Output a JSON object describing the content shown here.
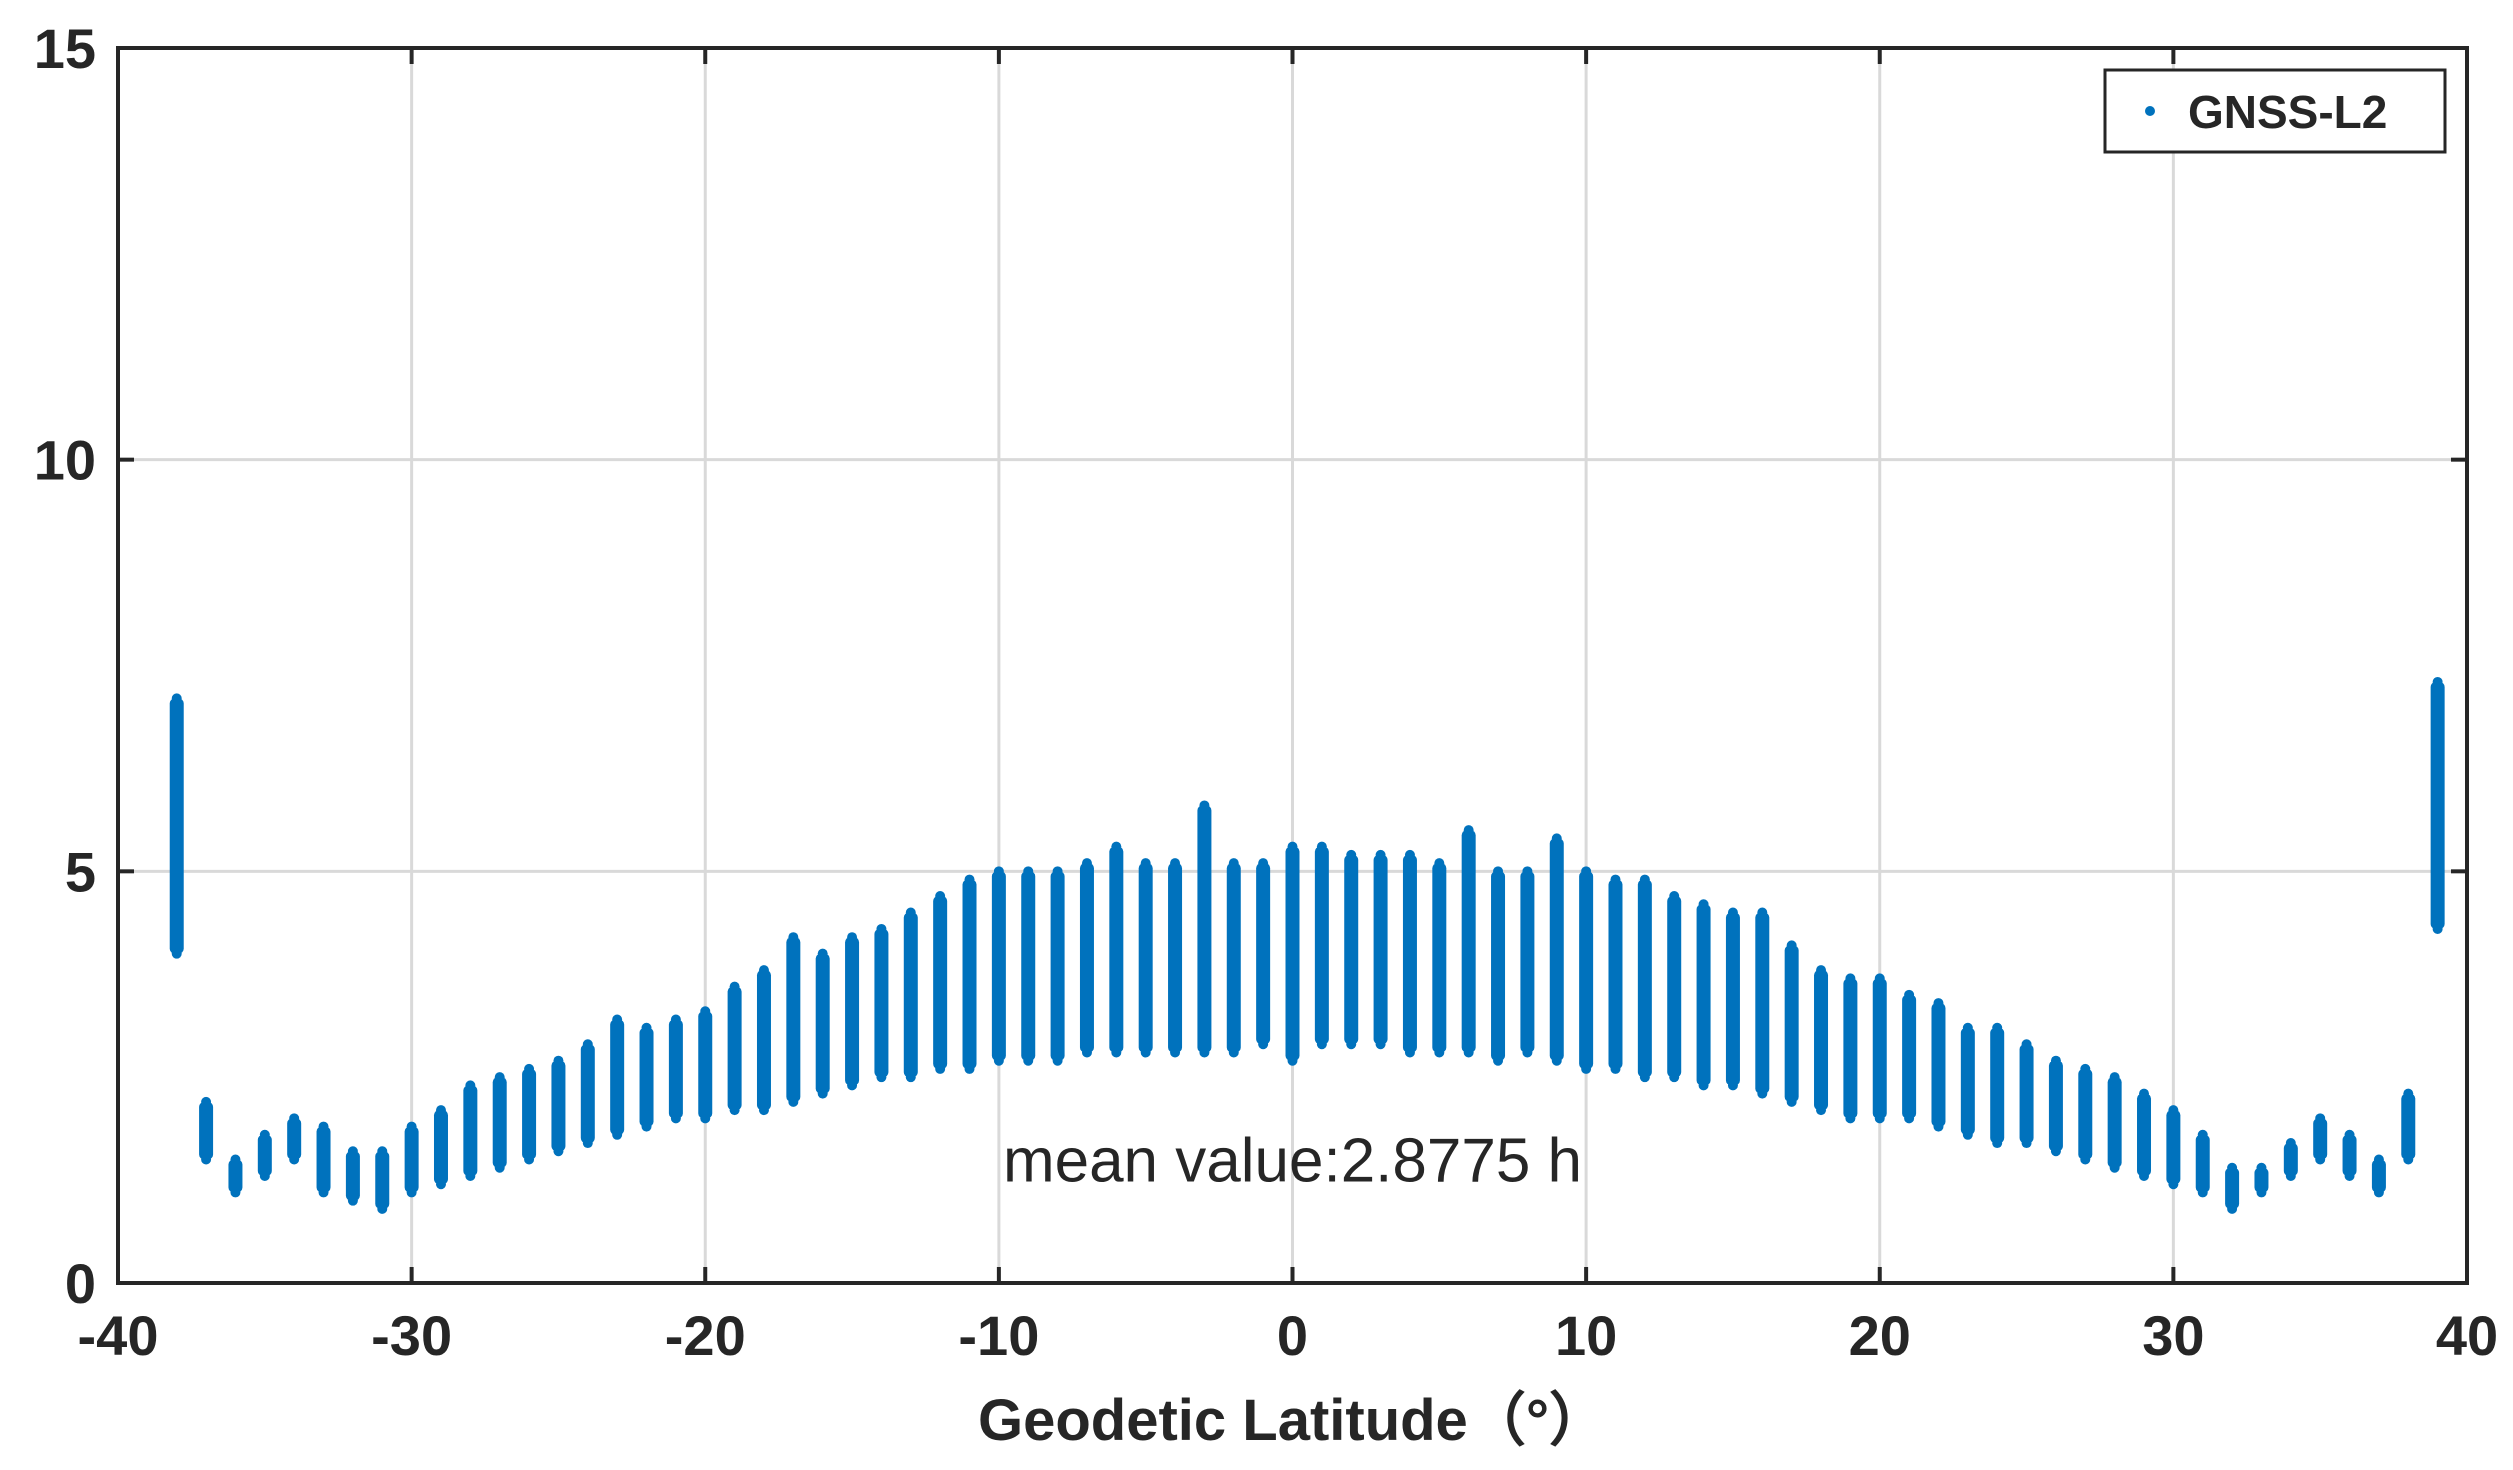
{
  "chart_data": {
    "type": "scatter",
    "title": "",
    "xlabel": "Geodetic Latitude（°）",
    "ylabel": "",
    "xlim": [
      -40,
      40
    ],
    "ylim": [
      0,
      15
    ],
    "xticks": [
      -40,
      -30,
      -20,
      -10,
      0,
      10,
      20,
      30,
      40
    ],
    "xtick_labels": [
      "-40",
      "-30",
      "-20",
      "-10",
      "0",
      "10",
      "20",
      "30",
      "40"
    ],
    "yticks": [
      0,
      5,
      10,
      15
    ],
    "ytick_labels": [
      "0",
      "5",
      "10",
      "15"
    ],
    "grid": true,
    "legend": {
      "position": "top-right",
      "entries": [
        "GNSS-L2"
      ]
    },
    "annotation": {
      "text": "mean value:2.8775 h",
      "x": 0,
      "y": 1.5
    },
    "color": "#0072BD",
    "series": [
      {
        "name": "GNSS-L2",
        "note": "Each point is a latitude column spanning [min, max] of the scattered values",
        "points": [
          {
            "x": -38,
            "min": 4.0,
            "max": 7.1
          },
          {
            "x": -37,
            "min": 1.5,
            "max": 2.2
          },
          {
            "x": -36,
            "min": 1.1,
            "max": 1.5
          },
          {
            "x": -35,
            "min": 1.3,
            "max": 1.8
          },
          {
            "x": -34,
            "min": 1.5,
            "max": 2.0
          },
          {
            "x": -33,
            "min": 1.1,
            "max": 1.9
          },
          {
            "x": -32,
            "min": 1.0,
            "max": 1.6
          },
          {
            "x": -31,
            "min": 0.9,
            "max": 1.6
          },
          {
            "x": -30,
            "min": 1.1,
            "max": 1.9
          },
          {
            "x": -29,
            "min": 1.2,
            "max": 2.1
          },
          {
            "x": -28,
            "min": 1.3,
            "max": 2.4
          },
          {
            "x": -27,
            "min": 1.4,
            "max": 2.5
          },
          {
            "x": -26,
            "min": 1.5,
            "max": 2.6
          },
          {
            "x": -25,
            "min": 1.6,
            "max": 2.7
          },
          {
            "x": -24,
            "min": 1.7,
            "max": 2.9
          },
          {
            "x": -23,
            "min": 1.8,
            "max": 3.2
          },
          {
            "x": -22,
            "min": 1.9,
            "max": 3.1
          },
          {
            "x": -21,
            "min": 2.0,
            "max": 3.2
          },
          {
            "x": -20,
            "min": 2.0,
            "max": 3.3
          },
          {
            "x": -19,
            "min": 2.1,
            "max": 3.6
          },
          {
            "x": -18,
            "min": 2.1,
            "max": 3.8
          },
          {
            "x": -17,
            "min": 2.2,
            "max": 4.2
          },
          {
            "x": -16,
            "min": 2.3,
            "max": 4.0
          },
          {
            "x": -15,
            "min": 2.4,
            "max": 4.2
          },
          {
            "x": -14,
            "min": 2.5,
            "max": 4.3
          },
          {
            "x": -13,
            "min": 2.5,
            "max": 4.5
          },
          {
            "x": -12,
            "min": 2.6,
            "max": 4.7
          },
          {
            "x": -11,
            "min": 2.6,
            "max": 4.9
          },
          {
            "x": -10,
            "min": 2.7,
            "max": 5.0
          },
          {
            "x": -9,
            "min": 2.7,
            "max": 5.0
          },
          {
            "x": -8,
            "min": 2.7,
            "max": 5.0
          },
          {
            "x": -7,
            "min": 2.8,
            "max": 5.1
          },
          {
            "x": -6,
            "min": 2.8,
            "max": 5.3
          },
          {
            "x": -5,
            "min": 2.8,
            "max": 5.1
          },
          {
            "x": -4,
            "min": 2.8,
            "max": 5.1
          },
          {
            "x": -3,
            "min": 2.8,
            "max": 5.8
          },
          {
            "x": -2,
            "min": 2.8,
            "max": 5.1
          },
          {
            "x": -1,
            "min": 2.9,
            "max": 5.1
          },
          {
            "x": 0,
            "min": 2.7,
            "max": 5.3
          },
          {
            "x": 1,
            "min": 2.9,
            "max": 5.3
          },
          {
            "x": 2,
            "min": 2.9,
            "max": 5.2
          },
          {
            "x": 3,
            "min": 2.9,
            "max": 5.2
          },
          {
            "x": 4,
            "min": 2.8,
            "max": 5.2
          },
          {
            "x": 5,
            "min": 2.8,
            "max": 5.1
          },
          {
            "x": 6,
            "min": 2.8,
            "max": 5.5
          },
          {
            "x": 7,
            "min": 2.7,
            "max": 5.0
          },
          {
            "x": 8,
            "min": 2.8,
            "max": 5.0
          },
          {
            "x": 9,
            "min": 2.7,
            "max": 5.4
          },
          {
            "x": 10,
            "min": 2.6,
            "max": 5.0
          },
          {
            "x": 11,
            "min": 2.6,
            "max": 4.9
          },
          {
            "x": 12,
            "min": 2.5,
            "max": 4.9
          },
          {
            "x": 13,
            "min": 2.5,
            "max": 4.7
          },
          {
            "x": 14,
            "min": 2.4,
            "max": 4.6
          },
          {
            "x": 15,
            "min": 2.4,
            "max": 4.5
          },
          {
            "x": 16,
            "min": 2.3,
            "max": 4.5
          },
          {
            "x": 17,
            "min": 2.2,
            "max": 4.1
          },
          {
            "x": 18,
            "min": 2.1,
            "max": 3.8
          },
          {
            "x": 19,
            "min": 2.0,
            "max": 3.7
          },
          {
            "x": 20,
            "min": 2.0,
            "max": 3.7
          },
          {
            "x": 21,
            "min": 2.0,
            "max": 3.5
          },
          {
            "x": 22,
            "min": 1.9,
            "max": 3.4
          },
          {
            "x": 23,
            "min": 1.8,
            "max": 3.1
          },
          {
            "x": 24,
            "min": 1.7,
            "max": 3.1
          },
          {
            "x": 25,
            "min": 1.7,
            "max": 2.9
          },
          {
            "x": 26,
            "min": 1.6,
            "max": 2.7
          },
          {
            "x": 27,
            "min": 1.5,
            "max": 2.6
          },
          {
            "x": 28,
            "min": 1.4,
            "max": 2.5
          },
          {
            "x": 29,
            "min": 1.3,
            "max": 2.3
          },
          {
            "x": 30,
            "min": 1.2,
            "max": 2.1
          },
          {
            "x": 31,
            "min": 1.1,
            "max": 1.8
          },
          {
            "x": 32,
            "min": 0.9,
            "max": 1.4
          },
          {
            "x": 33,
            "min": 1.1,
            "max": 1.4
          },
          {
            "x": 34,
            "min": 1.3,
            "max": 1.7
          },
          {
            "x": 35,
            "min": 1.5,
            "max": 2.0
          },
          {
            "x": 36,
            "min": 1.3,
            "max": 1.8
          },
          {
            "x": 37,
            "min": 1.1,
            "max": 1.5
          },
          {
            "x": 38,
            "min": 1.5,
            "max": 2.3
          },
          {
            "x": 39,
            "min": 4.3,
            "max": 7.3
          }
        ]
      }
    ]
  }
}
